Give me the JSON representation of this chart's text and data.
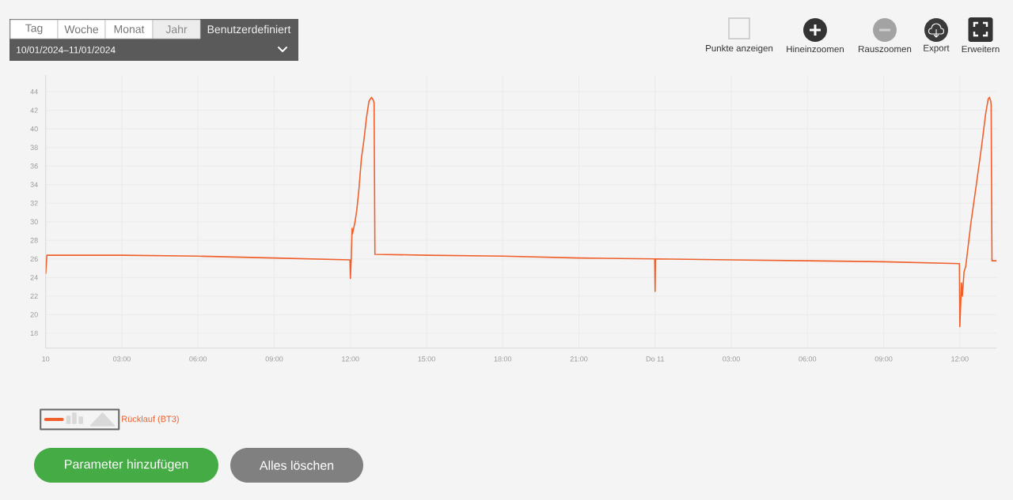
{
  "chart_data": {
    "type": "line",
    "x": [
      "2024-01-10T00:00",
      "2024-01-10T00:03",
      "2024-01-10T03:00",
      "2024-01-10T06:00",
      "2024-01-10T09:00",
      "2024-01-10T11:59",
      "2024-01-10T12:00",
      "2024-01-10T12:02",
      "2024-01-10T12:04",
      "2024-01-10T12:05",
      "2024-01-10T12:11",
      "2024-01-10T12:15",
      "2024-01-10T12:20",
      "2024-01-10T12:26",
      "2024-01-10T12:32",
      "2024-01-10T12:38",
      "2024-01-10T12:44",
      "2024-01-10T12:50",
      "2024-01-10T12:54",
      "2024-01-10T12:56",
      "2024-01-10T12:58",
      "2024-01-10T15:00",
      "2024-01-10T18:00",
      "2024-01-10T21:00",
      "2024-01-10T23:59",
      "2024-01-11T00:00",
      "2024-01-11T00:01",
      "2024-01-11T03:00",
      "2024-01-11T06:00",
      "2024-01-11T09:00",
      "2024-01-11T11:59",
      "2024-01-11T12:00",
      "2024-01-11T12:04",
      "2024-01-11T12:06",
      "2024-01-11T12:10",
      "2024-01-11T12:14",
      "2024-01-11T12:26",
      "2024-01-11T12:39",
      "2024-01-11T12:52",
      "2024-01-11T13:01",
      "2024-01-11T13:07",
      "2024-01-11T13:10",
      "2024-01-11T13:13",
      "2024-01-11T13:14",
      "2024-01-11T13:16",
      "2024-01-11T13:27"
    ],
    "series": [
      {
        "name": "Rücklauf (BT3)",
        "color": "#f0602c",
        "values": [
          24.4,
          26.4,
          26.4,
          26.3,
          26.1,
          25.9,
          23.9,
          26.0,
          29.3,
          28.7,
          30.0,
          31.2,
          33.4,
          36.8,
          38.8,
          41.2,
          43.0,
          43.4,
          43.1,
          42.8,
          26.5,
          26.4,
          26.3,
          26.1,
          26.0,
          22.5,
          26.0,
          25.9,
          25.8,
          25.7,
          25.5,
          18.7,
          23.4,
          22.0,
          24.6,
          25.2,
          29.8,
          34.0,
          38.3,
          41.6,
          43.2,
          43.4,
          43.0,
          42.6,
          25.8,
          25.8
        ]
      }
    ],
    "xlim": [
      "2024-01-10T00:00",
      "2024-01-11T13:27"
    ],
    "ylim": [
      16.4,
      45.8
    ],
    "xticks": [
      {
        "value": "2024-01-10T00:00",
        "label": "10"
      },
      {
        "value": "2024-01-10T03:00",
        "label": "03:00"
      },
      {
        "value": "2024-01-10T06:00",
        "label": "06:00"
      },
      {
        "value": "2024-01-10T09:00",
        "label": "09:00"
      },
      {
        "value": "2024-01-10T12:00",
        "label": "12:00"
      },
      {
        "value": "2024-01-10T15:00",
        "label": "15:00"
      },
      {
        "value": "2024-01-10T18:00",
        "label": "18:00"
      },
      {
        "value": "2024-01-10T21:00",
        "label": "21:00"
      },
      {
        "value": "2024-01-11T00:00",
        "label": "Do 11"
      },
      {
        "value": "2024-01-11T03:00",
        "label": "03:00"
      },
      {
        "value": "2024-01-11T06:00",
        "label": "06:00"
      },
      {
        "value": "2024-01-11T09:00",
        "label": "09:00"
      },
      {
        "value": "2024-01-11T12:00",
        "label": "12:00"
      }
    ],
    "yticks": [
      18,
      20,
      22,
      24,
      26,
      28,
      30,
      32,
      34,
      36,
      38,
      40,
      42,
      44
    ],
    "grid": true,
    "legend": "bottom left",
    "annotations": [
      "Tag",
      "Woche",
      "Monat",
      "Jahr",
      "Benutzerdefiniert",
      "10/01/2024–11/01/2024",
      "Punkte anzeigen",
      "Hineinzoomen",
      "Rauszoomen",
      "Export",
      "Erweitern",
      "Parameter hinzufügen",
      "Alles löschen"
    ]
  }
}
